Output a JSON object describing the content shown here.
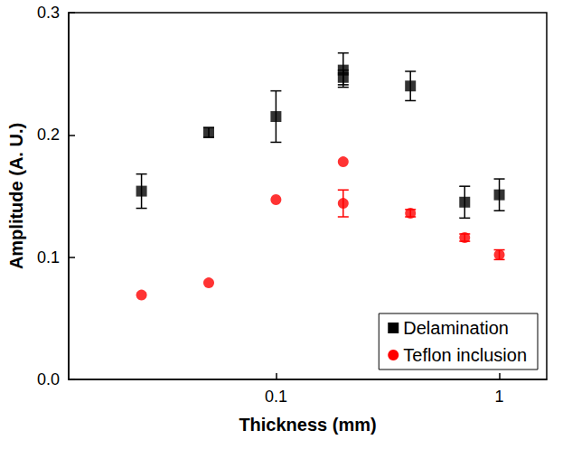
{
  "chart_data": {
    "type": "scatter",
    "x_label": "Thickness (mm)",
    "y_label": "Amplitude (A. U.)",
    "log": "x",
    "xlim": [
      0.0118,
      1.63
    ],
    "xticks": [
      0.1,
      1
    ],
    "ylim": [
      0,
      0.3
    ],
    "yticks": [
      {
        "value": 0,
        "label": "0.0"
      },
      0.1,
      0.2,
      0.3
    ],
    "grid": false,
    "legend": "lower right",
    "series": [
      {
        "name": "Delamination",
        "color": "#000000",
        "marker": "square",
        "x": [
          0.025,
          0.05,
          0.1,
          0.2,
          0.2,
          0.4,
          0.7,
          1
        ],
        "values": [
          0.154,
          0.202,
          0.215,
          0.253,
          0.247,
          0.24,
          0.145,
          0.151
        ],
        "errors": [
          0.014,
          0.004,
          0.021,
          0.014,
          0.006,
          0.012,
          0.013,
          0.013
        ]
      },
      {
        "name": "Teflon inclusion",
        "color": "#ff0000",
        "marker": "circle",
        "x": [
          0.025,
          0.05,
          0.1,
          0.2,
          0.2,
          0.4,
          0.7,
          1
        ],
        "values": [
          0.069,
          0.079,
          0.147,
          0.178,
          0.144,
          0.136,
          0.116,
          0.102
        ],
        "errors": [
          null,
          null,
          null,
          null,
          0.011,
          0.003,
          0.003,
          0.004
        ]
      }
    ]
  }
}
